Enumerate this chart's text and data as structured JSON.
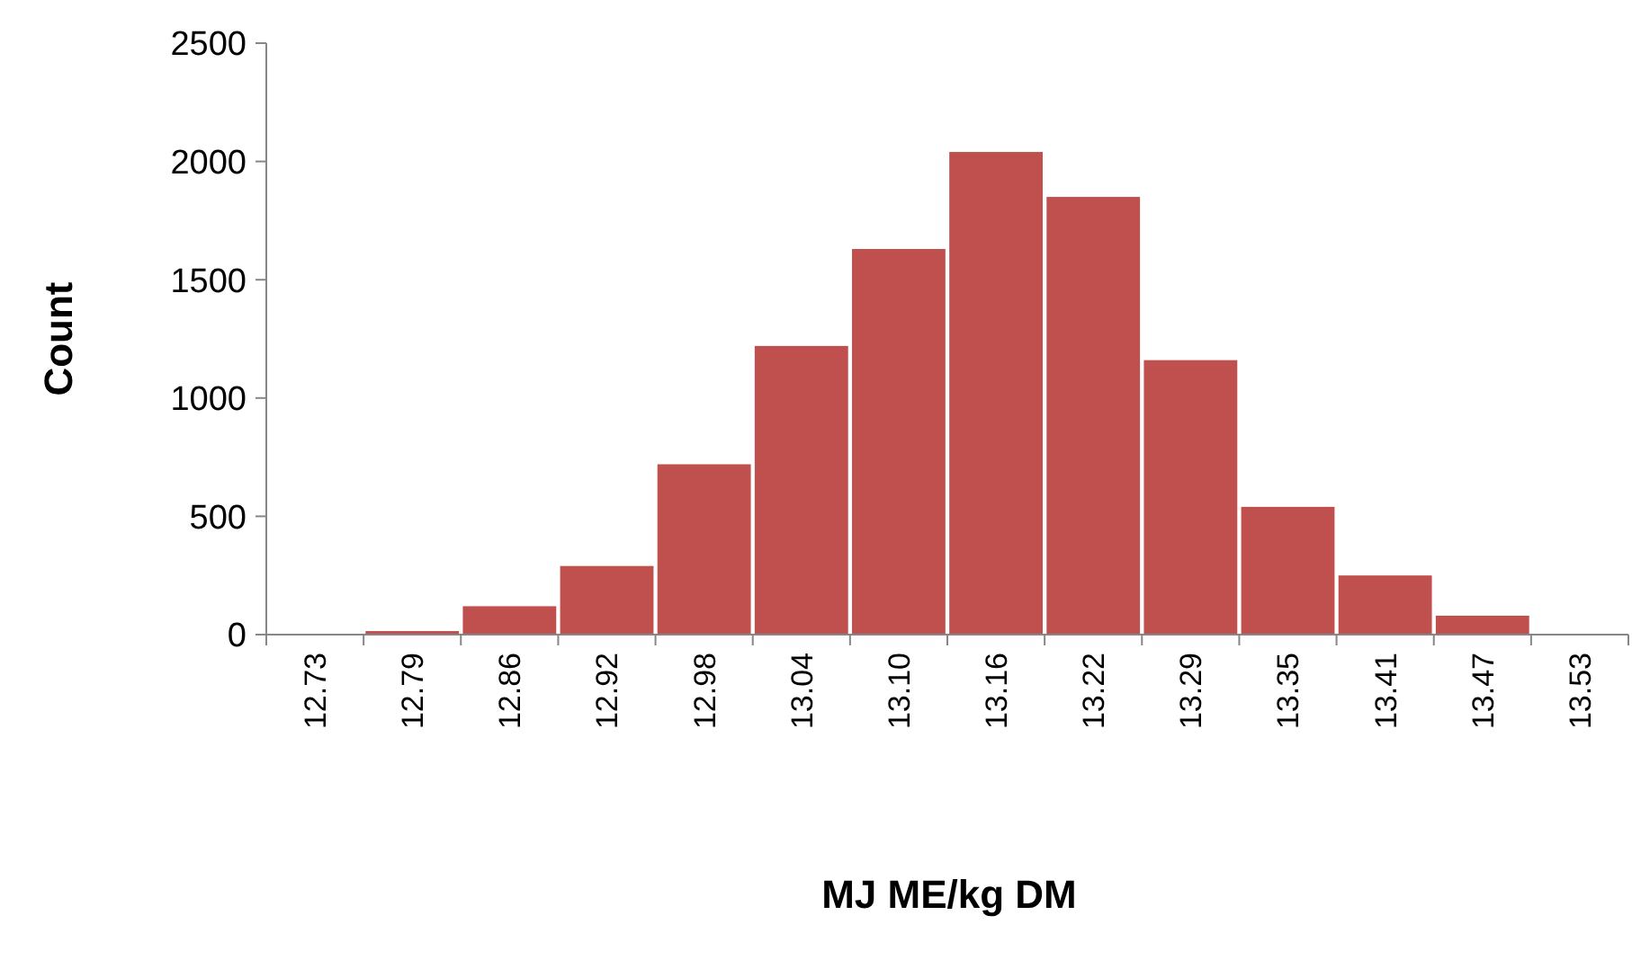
{
  "chart_data": {
    "type": "bar",
    "xlabel": "MJ ME/kg DM",
    "ylabel": "Count",
    "categories": [
      "12.73",
      "12.79",
      "12.86",
      "12.92",
      "12.98",
      "13.04",
      "13.10",
      "13.16",
      "13.22",
      "13.29",
      "13.35",
      "13.41",
      "13.47",
      "13.53"
    ],
    "values": [
      0,
      15,
      120,
      290,
      720,
      1220,
      1630,
      2040,
      1850,
      1160,
      540,
      250,
      80,
      0
    ],
    "color": "#c0504d",
    "ylim": [
      0,
      2500
    ],
    "yticks": [
      0,
      500,
      1000,
      1500,
      2000,
      2500
    ],
    "grid": false
  }
}
